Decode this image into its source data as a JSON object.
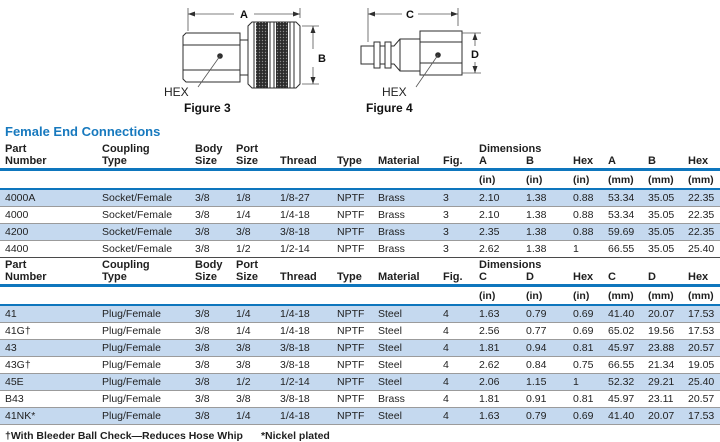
{
  "page": {
    "title": "Female End Connections",
    "footnote_dagger": "†With Bleeder Ball Check—Reduces Hose Whip",
    "footnote_asterisk": "*Nickel plated"
  },
  "colors": {
    "accent": "#1779be",
    "rule": "#0e76bd",
    "row_highlight": "#c5d9ef"
  },
  "figures": [
    {
      "caption": "Figure 3",
      "hex_label": "HEX",
      "width_dim": "A",
      "height_dim": "B"
    },
    {
      "caption": "Figure 4",
      "hex_label": "HEX",
      "width_dim": "C",
      "height_dim": "D"
    }
  ],
  "sections": [
    {
      "id": "socket-female",
      "dimensions_label": "Dimensions",
      "columns_top": [
        "Part",
        "Coupling",
        "Body",
        "Port",
        "",
        "",
        "",
        ""
      ],
      "columns_bottom": [
        "Number",
        "Type",
        "Size",
        "Size",
        "Thread",
        "Type",
        "Material",
        "Fig.",
        "A",
        "B",
        "Hex",
        "A",
        "B",
        "Hex"
      ],
      "units": [
        "",
        "",
        "",
        "",
        "",
        "",
        "",
        "",
        "(in)",
        "(in)",
        "(in)",
        "(mm)",
        "(mm)",
        "(mm)"
      ],
      "rows": [
        [
          "4000A",
          "Socket/Female",
          "3/8",
          "1/8",
          "1/8-27",
          "NPTF",
          "Brass",
          "3",
          "2.10",
          "1.38",
          "0.88",
          "53.34",
          "35.05",
          "22.35"
        ],
        [
          "4000",
          "Socket/Female",
          "3/8",
          "1/4",
          "1/4-18",
          "NPTF",
          "Brass",
          "3",
          "2.10",
          "1.38",
          "0.88",
          "53.34",
          "35.05",
          "22.35"
        ],
        [
          "4200",
          "Socket/Female",
          "3/8",
          "3/8",
          "3/8-18",
          "NPTF",
          "Brass",
          "3",
          "2.35",
          "1.38",
          "0.88",
          "59.69",
          "35.05",
          "22.35"
        ],
        [
          "4400",
          "Socket/Female",
          "3/8",
          "1/2",
          "1/2-14",
          "NPTF",
          "Brass",
          "3",
          "2.62",
          "1.38",
          "1",
          "66.55",
          "35.05",
          "25.40"
        ]
      ]
    },
    {
      "id": "plug-female",
      "dimensions_label": "Dimensions",
      "columns_top": [
        "Part",
        "Coupling",
        "Body",
        "Port",
        "",
        "",
        "",
        ""
      ],
      "columns_bottom": [
        "Number",
        "Type",
        "Size",
        "Size",
        "Thread",
        "Type",
        "Material",
        "Fig.",
        "C",
        "D",
        "Hex",
        "C",
        "D",
        "Hex"
      ],
      "units": [
        "",
        "",
        "",
        "",
        "",
        "",
        "",
        "",
        "(in)",
        "(in)",
        "(in)",
        "(mm)",
        "(mm)",
        "(mm)"
      ],
      "rows": [
        [
          "41",
          "Plug/Female",
          "3/8",
          "1/4",
          "1/4-18",
          "NPTF",
          "Steel",
          "4",
          "1.63",
          "0.79",
          "0.69",
          "41.40",
          "20.07",
          "17.53"
        ],
        [
          "41G†",
          "Plug/Female",
          "3/8",
          "1/4",
          "1/4-18",
          "NPTF",
          "Steel",
          "4",
          "2.56",
          "0.77",
          "0.69",
          "65.02",
          "19.56",
          "17.53"
        ],
        [
          "43",
          "Plug/Female",
          "3/8",
          "3/8",
          "3/8-18",
          "NPTF",
          "Steel",
          "4",
          "1.81",
          "0.94",
          "0.81",
          "45.97",
          "23.88",
          "20.57"
        ],
        [
          "43G†",
          "Plug/Female",
          "3/8",
          "3/8",
          "3/8-18",
          "NPTF",
          "Steel",
          "4",
          "2.62",
          "0.84",
          "0.75",
          "66.55",
          "21.34",
          "19.05"
        ],
        [
          "45E",
          "Plug/Female",
          "3/8",
          "1/2",
          "1/2-14",
          "NPTF",
          "Steel",
          "4",
          "2.06",
          "1.15",
          "1",
          "52.32",
          "29.21",
          "25.40"
        ],
        [
          "B43",
          "Plug/Female",
          "3/8",
          "3/8",
          "3/8-18",
          "NPTF",
          "Brass",
          "4",
          "1.81",
          "0.91",
          "0.81",
          "45.97",
          "23.11",
          "20.57"
        ],
        [
          "41NK*",
          "Plug/Female",
          "3/8",
          "1/4",
          "1/4-18",
          "NPTF",
          "Steel",
          "4",
          "1.63",
          "0.79",
          "0.69",
          "41.40",
          "20.07",
          "17.53"
        ]
      ]
    }
  ]
}
